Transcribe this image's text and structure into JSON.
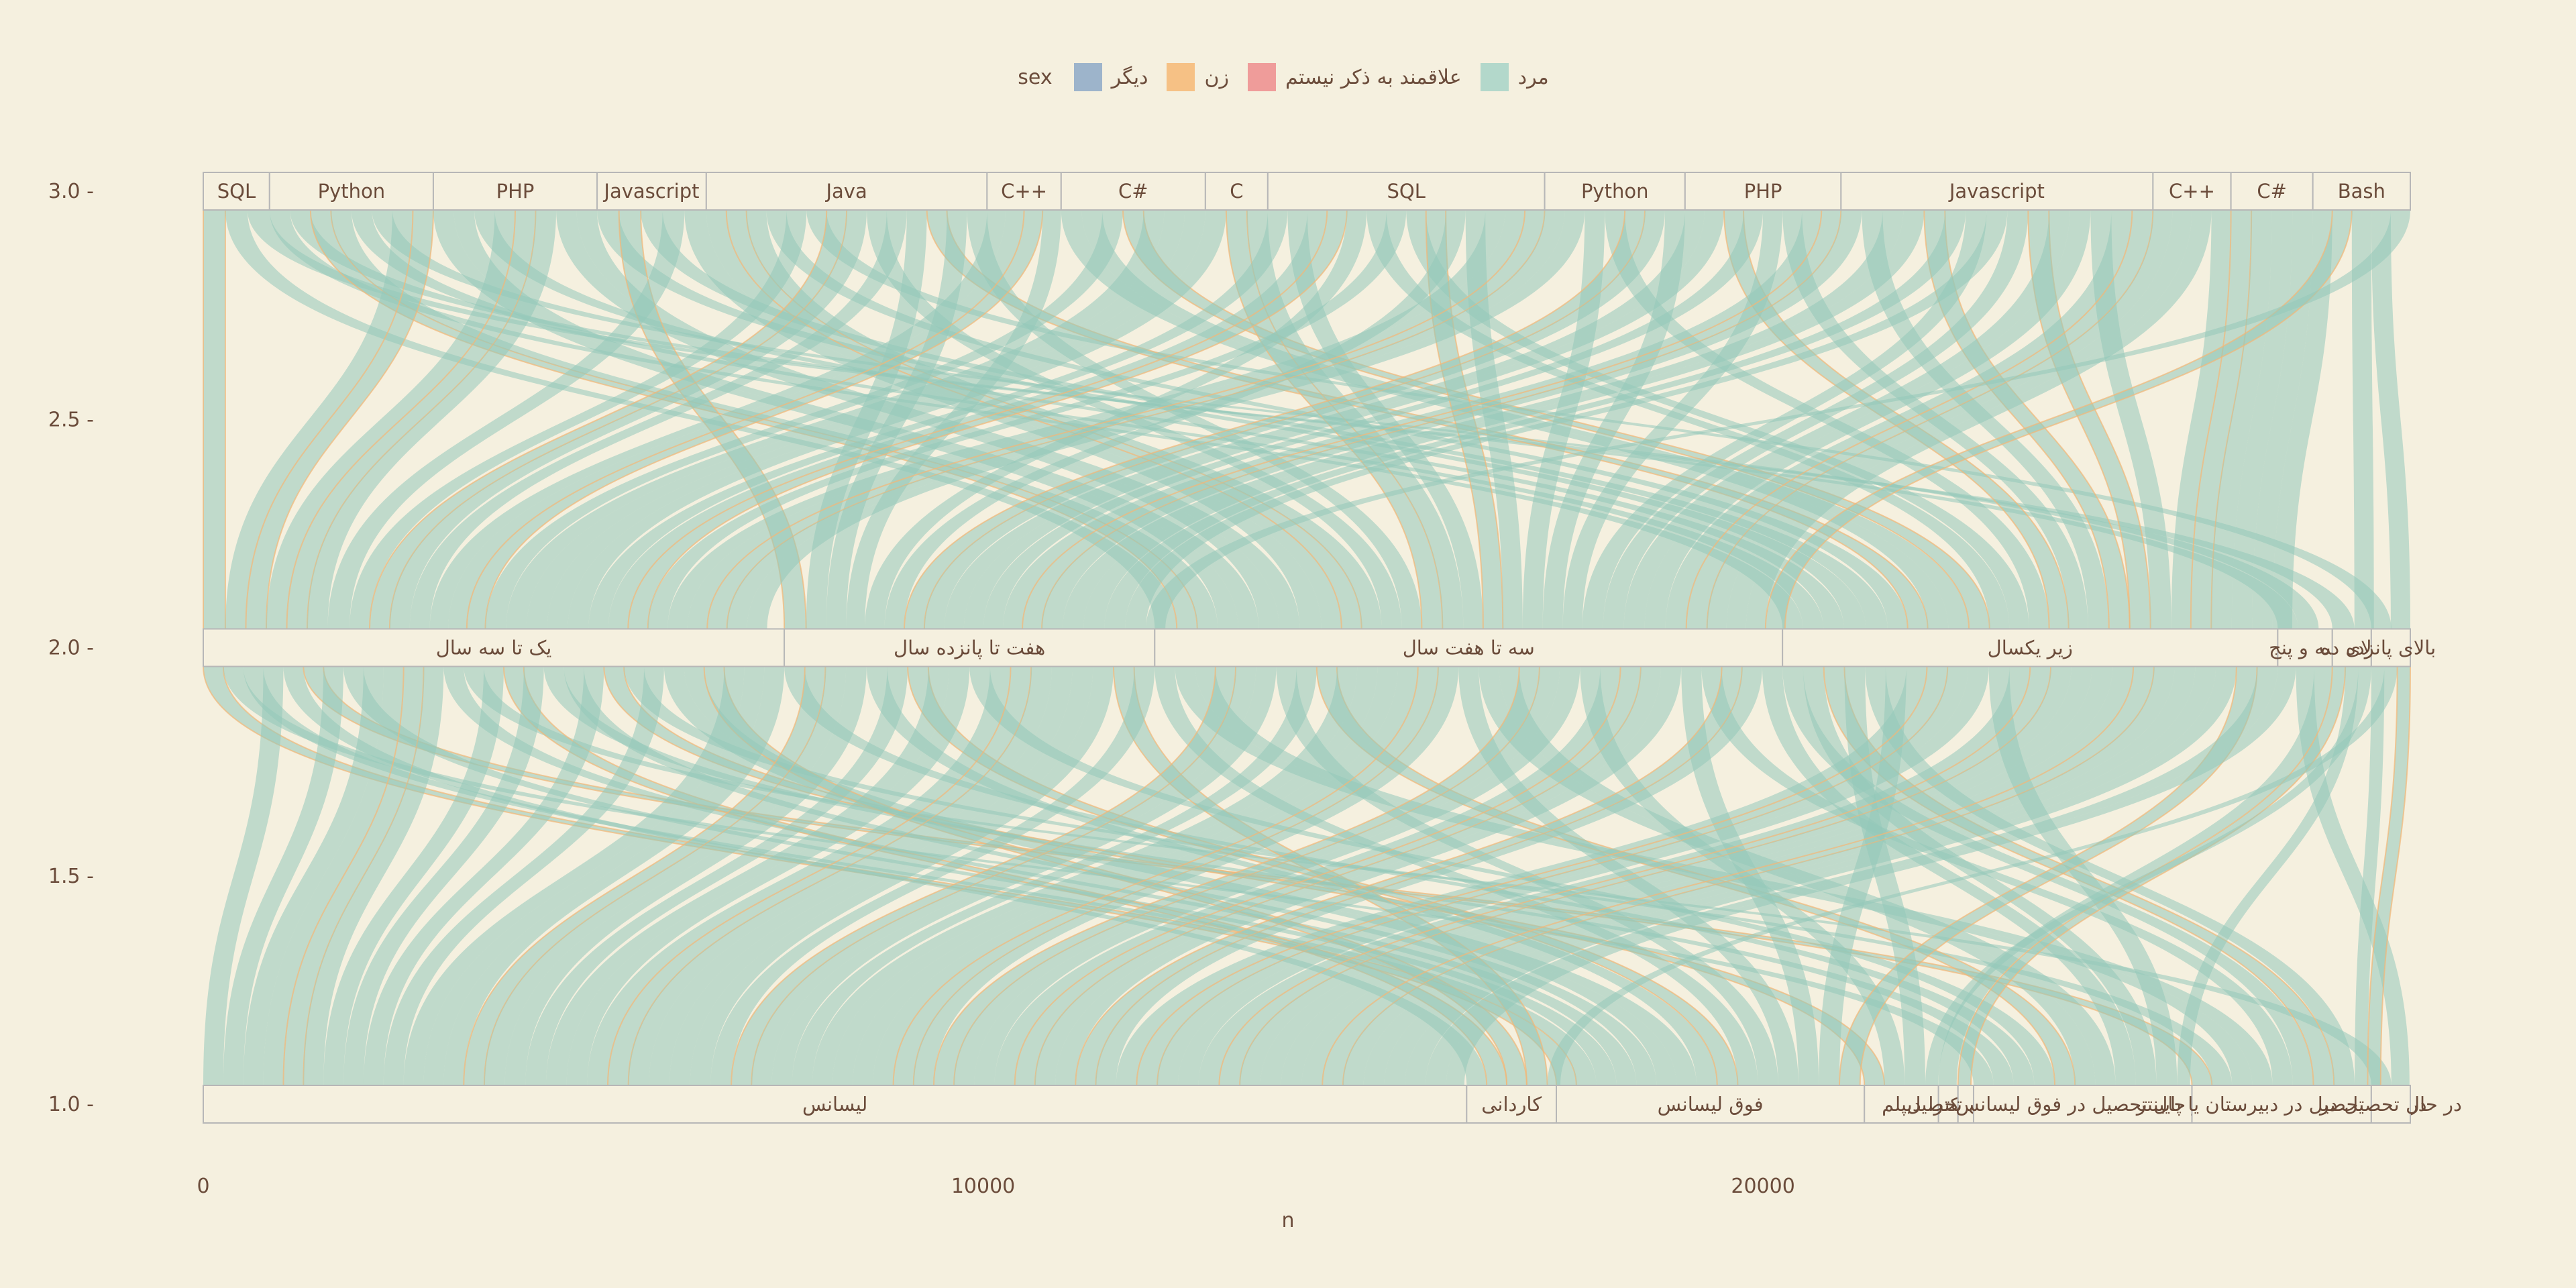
{
  "legend": {
    "title": "sex",
    "items": [
      {
        "label": "مرد",
        "color": "#b3d8cb"
      },
      {
        "label": "علاقمند به ذکر نیستم",
        "color": "#ef9c9a"
      },
      {
        "label": "زن",
        "color": "#f6c185"
      },
      {
        "label": "دیگر",
        "color": "#9db4cb"
      }
    ]
  },
  "chart_data": {
    "type": "alluvial",
    "xlabel": "n",
    "ylabel": "",
    "xlim": [
      0,
      28300
    ],
    "ylim": [
      1,
      3
    ],
    "x_ticks": [
      "0",
      "10000",
      "20000"
    ],
    "x_tick_values": [
      0,
      10000,
      20000
    ],
    "y_ticks": [
      "1.0",
      "1.5",
      "2.0",
      "2.5",
      "3.0"
    ],
    "y_tick_values": [
      1.0,
      1.5,
      2.0,
      2.5,
      3.0
    ],
    "axes": [
      {
        "level": 3,
        "name": "language",
        "strata": [
          {
            "label": "SQL",
            "start": 0,
            "end": 850
          },
          {
            "label": "Python",
            "start": 850,
            "end": 2950
          },
          {
            "label": "PHP",
            "start": 2950,
            "end": 5050
          },
          {
            "label": "Javascript",
            "start": 5050,
            "end": 6450
          },
          {
            "label": "Java",
            "start": 6450,
            "end": 10050
          },
          {
            "label": "C++",
            "start": 10050,
            "end": 11000
          },
          {
            "label": "C#",
            "start": 11000,
            "end": 12850
          },
          {
            "label": "C",
            "start": 12850,
            "end": 13650
          },
          {
            "label": "SQL",
            "start": 13650,
            "end": 17200
          },
          {
            "label": "Python",
            "start": 17200,
            "end": 19000
          },
          {
            "label": "PHP",
            "start": 19000,
            "end": 21000
          },
          {
            "label": "Javascript",
            "start": 21000,
            "end": 25000
          },
          {
            "label": "C++",
            "start": 25000,
            "end": 26000
          },
          {
            "label": "C#",
            "start": 26000,
            "end": 27050
          },
          {
            "label": "Bash",
            "start": 27050,
            "end": 28300
          }
        ]
      },
      {
        "level": 2,
        "name": "experience",
        "strata": [
          {
            "label": "یک تا سه سال",
            "start": 0,
            "end": 7450
          },
          {
            "label": "هفت تا پانزده سال",
            "start": 7450,
            "end": 12200
          },
          {
            "label": "سه تا هفت سال",
            "start": 12200,
            "end": 20250
          },
          {
            "label": "زیر یکسال",
            "start": 20250,
            "end": 26600
          },
          {
            "label": "سه و پنج",
            "start": 26600,
            "end": 27300
          },
          {
            "label": "بالای ده",
            "start": 27300,
            "end": 27800
          },
          {
            "label": "بالای پانزده",
            "start": 27800,
            "end": 28300
          }
        ]
      },
      {
        "level": 1,
        "name": "education",
        "strata": [
          {
            "label": "لیسانس",
            "start": 0,
            "end": 16200
          },
          {
            "label": "کاردانی",
            "start": 16200,
            "end": 17350
          },
          {
            "label": "فوق لیسانس",
            "start": 17350,
            "end": 21300
          },
          {
            "label": "دیپلم",
            "start": 21300,
            "end": 22250
          },
          {
            "label": "دکترا",
            "start": 22250,
            "end": 22500
          },
          {
            "label": "در حال تحصیل",
            "start": 22500,
            "end": 22700
          },
          {
            "label": "در حال تحصیل در فوق لیسانس",
            "start": 22700,
            "end": 25500
          },
          {
            "label": "در حال تحصیل در دبیرستان یا پایینتر",
            "start": 25500,
            "end": 27800
          },
          {
            "label": "در حال تحصیل در",
            "start": 27800,
            "end": 28300
          }
        ]
      }
    ],
    "flow_colors": {
      "main": "#93c8ba",
      "minor": "#f3b676"
    }
  }
}
